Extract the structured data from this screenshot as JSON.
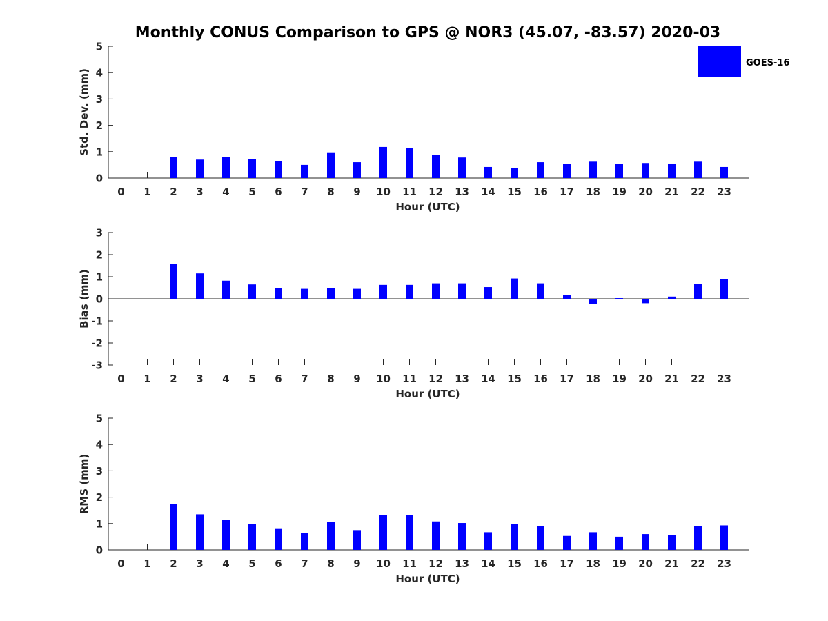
{
  "chart_data": {
    "title": "Monthly CONUS Comparison to GPS @ NOR3 (45.07, -83.57) 2020-03",
    "legend": {
      "label": "GOES-16",
      "color": "#0000ff",
      "placement": "top-right"
    },
    "bar_color": "#0000ff",
    "panels": [
      {
        "type": "bar",
        "name": "std-dev",
        "ylabel": "Std. Dev. (mm)",
        "xlabel": "Hour (UTC)",
        "ylim": [
          0,
          5
        ],
        "yticks": [
          0,
          1,
          2,
          3,
          4,
          5
        ],
        "categories": [
          "0",
          "1",
          "2",
          "3",
          "4",
          "5",
          "6",
          "7",
          "8",
          "9",
          "10",
          "11",
          "12",
          "13",
          "14",
          "15",
          "16",
          "17",
          "18",
          "19",
          "20",
          "21",
          "22",
          "23"
        ],
        "values": [
          null,
          null,
          0.8,
          0.7,
          0.8,
          0.72,
          0.65,
          0.5,
          0.95,
          0.6,
          1.18,
          1.15,
          0.87,
          0.78,
          0.42,
          0.37,
          0.6,
          0.53,
          0.62,
          0.53,
          0.57,
          0.55,
          0.62,
          0.42
        ]
      },
      {
        "type": "bar",
        "name": "bias",
        "ylabel": "Bias (mm)",
        "xlabel": "Hour (UTC)",
        "ylim": [
          -3,
          3
        ],
        "yticks": [
          -3,
          -2,
          -1,
          0,
          1,
          2,
          3
        ],
        "categories": [
          "0",
          "1",
          "2",
          "3",
          "4",
          "5",
          "6",
          "7",
          "8",
          "9",
          "10",
          "11",
          "12",
          "13",
          "14",
          "15",
          "16",
          "17",
          "18",
          "19",
          "20",
          "21",
          "22",
          "23"
        ],
        "values": [
          null,
          null,
          1.57,
          1.15,
          0.82,
          0.65,
          0.47,
          0.45,
          0.5,
          0.45,
          0.63,
          0.63,
          0.7,
          0.7,
          0.53,
          0.92,
          0.7,
          0.16,
          -0.22,
          0.03,
          -0.2,
          0.1,
          0.67,
          0.88
        ]
      },
      {
        "type": "bar",
        "name": "rms",
        "ylabel": "RMS (mm)",
        "xlabel": "Hour (UTC)",
        "ylim": [
          0,
          5
        ],
        "yticks": [
          0,
          1,
          2,
          3,
          4,
          5
        ],
        "categories": [
          "0",
          "1",
          "2",
          "3",
          "4",
          "5",
          "6",
          "7",
          "8",
          "9",
          "10",
          "11",
          "12",
          "13",
          "14",
          "15",
          "16",
          "17",
          "18",
          "19",
          "20",
          "21",
          "22",
          "23"
        ],
        "values": [
          null,
          null,
          1.73,
          1.35,
          1.15,
          0.97,
          0.82,
          0.65,
          1.05,
          0.75,
          1.32,
          1.32,
          1.08,
          1.02,
          0.67,
          0.97,
          0.9,
          0.53,
          0.67,
          0.5,
          0.6,
          0.55,
          0.9,
          0.93
        ]
      }
    ]
  }
}
